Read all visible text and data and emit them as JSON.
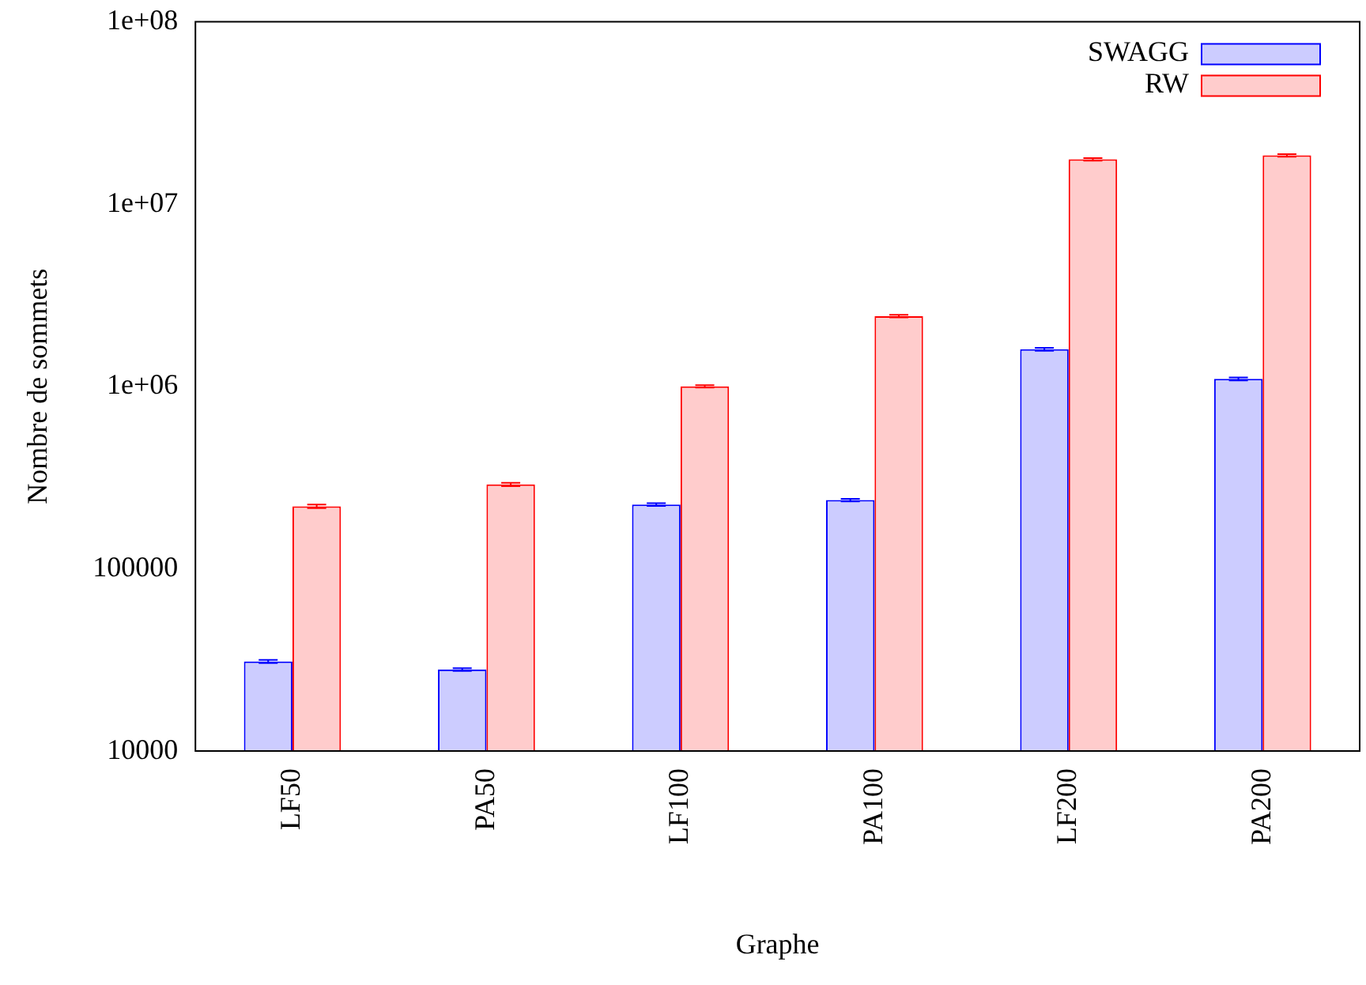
{
  "chart_data": {
    "type": "bar",
    "xlabel": "Graphe",
    "ylabel": "Nombre de sommets",
    "categories": [
      "LF50",
      "PA50",
      "LF100",
      "PA100",
      "LF200",
      "PA200"
    ],
    "series": [
      {
        "name": "SWAGG",
        "color": "#ccccff",
        "values": [
          31000,
          28000,
          225000,
          238000,
          1600000,
          1100000
        ],
        "errors": [
          600,
          500,
          4000,
          4000,
          30000,
          20000
        ]
      },
      {
        "name": "RW",
        "color": "#ffcccc",
        "values": [
          220000,
          290000,
          1000000,
          2430000,
          17600000,
          18500000
        ],
        "errors": [
          5000,
          6000,
          15000,
          40000,
          300000,
          300000
        ]
      }
    ],
    "log": true,
    "ylim": [
      10000,
      100000000
    ],
    "yticks": [
      10000,
      100000,
      {
        "value": 1000000,
        "label": "1e+06"
      },
      {
        "value": 10000000,
        "label": "1e+07"
      },
      {
        "value": 100000000,
        "label": "1e+08"
      }
    ],
    "grid": false,
    "legend": "top right"
  }
}
